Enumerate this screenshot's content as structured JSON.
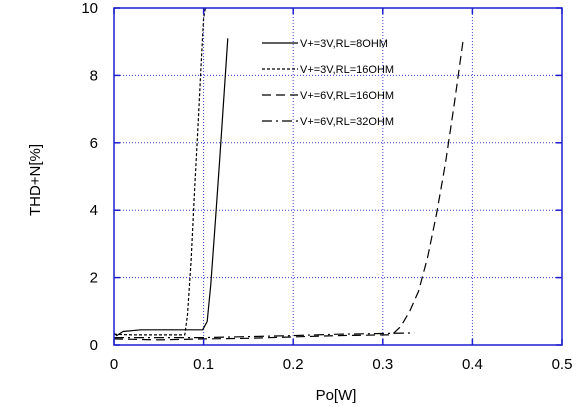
{
  "chart_data": {
    "type": "line",
    "xlabel": "Po[W]",
    "ylabel": "THD+N[%]",
    "xlim": [
      0,
      0.5
    ],
    "ylim": [
      0,
      10
    ],
    "x_ticks": [
      "0",
      "0.1",
      "0.2",
      "0.3",
      "0.4",
      "0.5"
    ],
    "y_ticks": [
      "0",
      "2",
      "4",
      "6",
      "8",
      "10"
    ],
    "grid": true,
    "grid_style": "dotted",
    "grid_color": "#3a3ad8",
    "frame_color": "#1e1ed0",
    "legend_position": "top-right",
    "series": [
      {
        "name": "V+=3V,RL=8OHM",
        "dash": "solid",
        "color": "#000000",
        "x": [
          0.0,
          0.003,
          0.01,
          0.03,
          0.06,
          0.09,
          0.099,
          0.104,
          0.108,
          0.113,
          0.118,
          0.123,
          0.127
        ],
        "y": [
          0.35,
          0.28,
          0.4,
          0.45,
          0.45,
          0.45,
          0.45,
          0.7,
          1.8,
          3.6,
          5.5,
          7.5,
          9.1
        ]
      },
      {
        "name": "V+=3V,RL=16OHM",
        "dash": "short-dash",
        "color": "#000000",
        "x": [
          0.0,
          0.02,
          0.05,
          0.07,
          0.079,
          0.082,
          0.086,
          0.09,
          0.094,
          0.097,
          0.1,
          0.102
        ],
        "y": [
          0.32,
          0.3,
          0.3,
          0.3,
          0.3,
          0.9,
          2.5,
          4.6,
          6.6,
          8.2,
          9.7,
          10.0
        ]
      },
      {
        "name": "V+=6V,RL=16OHM",
        "dash": "long-dash",
        "color": "#000000",
        "x": [
          0.0,
          0.05,
          0.1,
          0.15,
          0.2,
          0.25,
          0.3,
          0.31,
          0.32,
          0.33,
          0.34,
          0.35,
          0.36,
          0.37,
          0.38,
          0.39
        ],
        "y": [
          0.18,
          0.15,
          0.18,
          0.2,
          0.24,
          0.28,
          0.3,
          0.3,
          0.55,
          1.0,
          1.6,
          2.6,
          3.9,
          5.4,
          7.2,
          9.1
        ]
      },
      {
        "name": "V+=6V,RL=32OHM",
        "dash": "dash-dot",
        "color": "#000000",
        "x": [
          0.0,
          0.05,
          0.1,
          0.15,
          0.2,
          0.25,
          0.3,
          0.335
        ],
        "y": [
          0.22,
          0.22,
          0.22,
          0.25,
          0.28,
          0.32,
          0.34,
          0.36
        ]
      }
    ]
  }
}
